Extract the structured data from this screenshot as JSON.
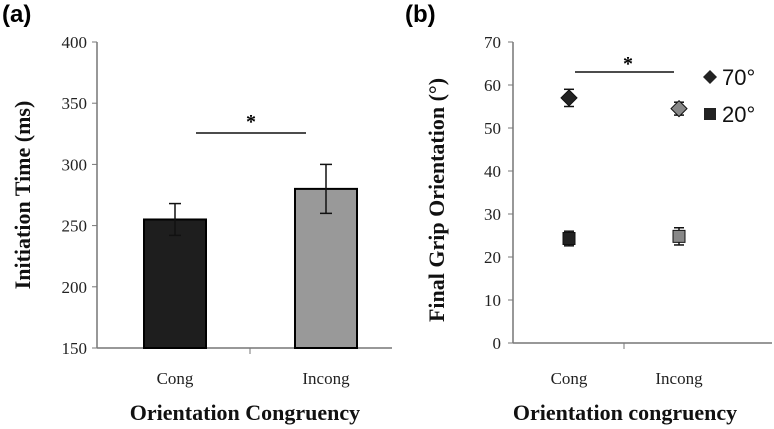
{
  "chart_data": [
    {
      "panel_label": "(a)",
      "type": "bar",
      "title": "",
      "xlabel": "Orientation Congruency",
      "ylabel": "Initiation Time (ms)",
      "ylim": [
        150,
        400
      ],
      "yticks": [
        "150",
        "200",
        "250",
        "300",
        "350",
        "400"
      ],
      "categories": [
        "Cong",
        "Incong"
      ],
      "values": [
        255,
        280
      ],
      "errors": [
        13,
        20
      ],
      "colors": [
        "#1e1e1e",
        "#999999"
      ],
      "significance": {
        "from": "Cong",
        "to": "Incong",
        "label": "*"
      }
    },
    {
      "panel_label": "(b)",
      "type": "scatter",
      "xlabel": "Orientation congruency",
      "ylabel": "Final Grip Orientation (°)",
      "ylim": [
        0,
        70
      ],
      "yticks": [
        "0",
        "10",
        "20",
        "30",
        "40",
        "50",
        "60",
        "70"
      ],
      "categories": [
        "Cong",
        "Incong"
      ],
      "series": [
        {
          "name": "70°",
          "marker": "diamond",
          "values": [
            57,
            54.5
          ],
          "errors": [
            2,
            1.5
          ],
          "colors": [
            "#222222",
            "#888888"
          ]
        },
        {
          "name": "20°",
          "marker": "square",
          "values": [
            24.3,
            24.8
          ],
          "errors": [
            1.7,
            2
          ],
          "colors": [
            "#222222",
            "#888888"
          ]
        }
      ],
      "legend_position": "top-right",
      "significance": {
        "from": "Cong",
        "to": "Incong",
        "label": "*"
      }
    }
  ]
}
